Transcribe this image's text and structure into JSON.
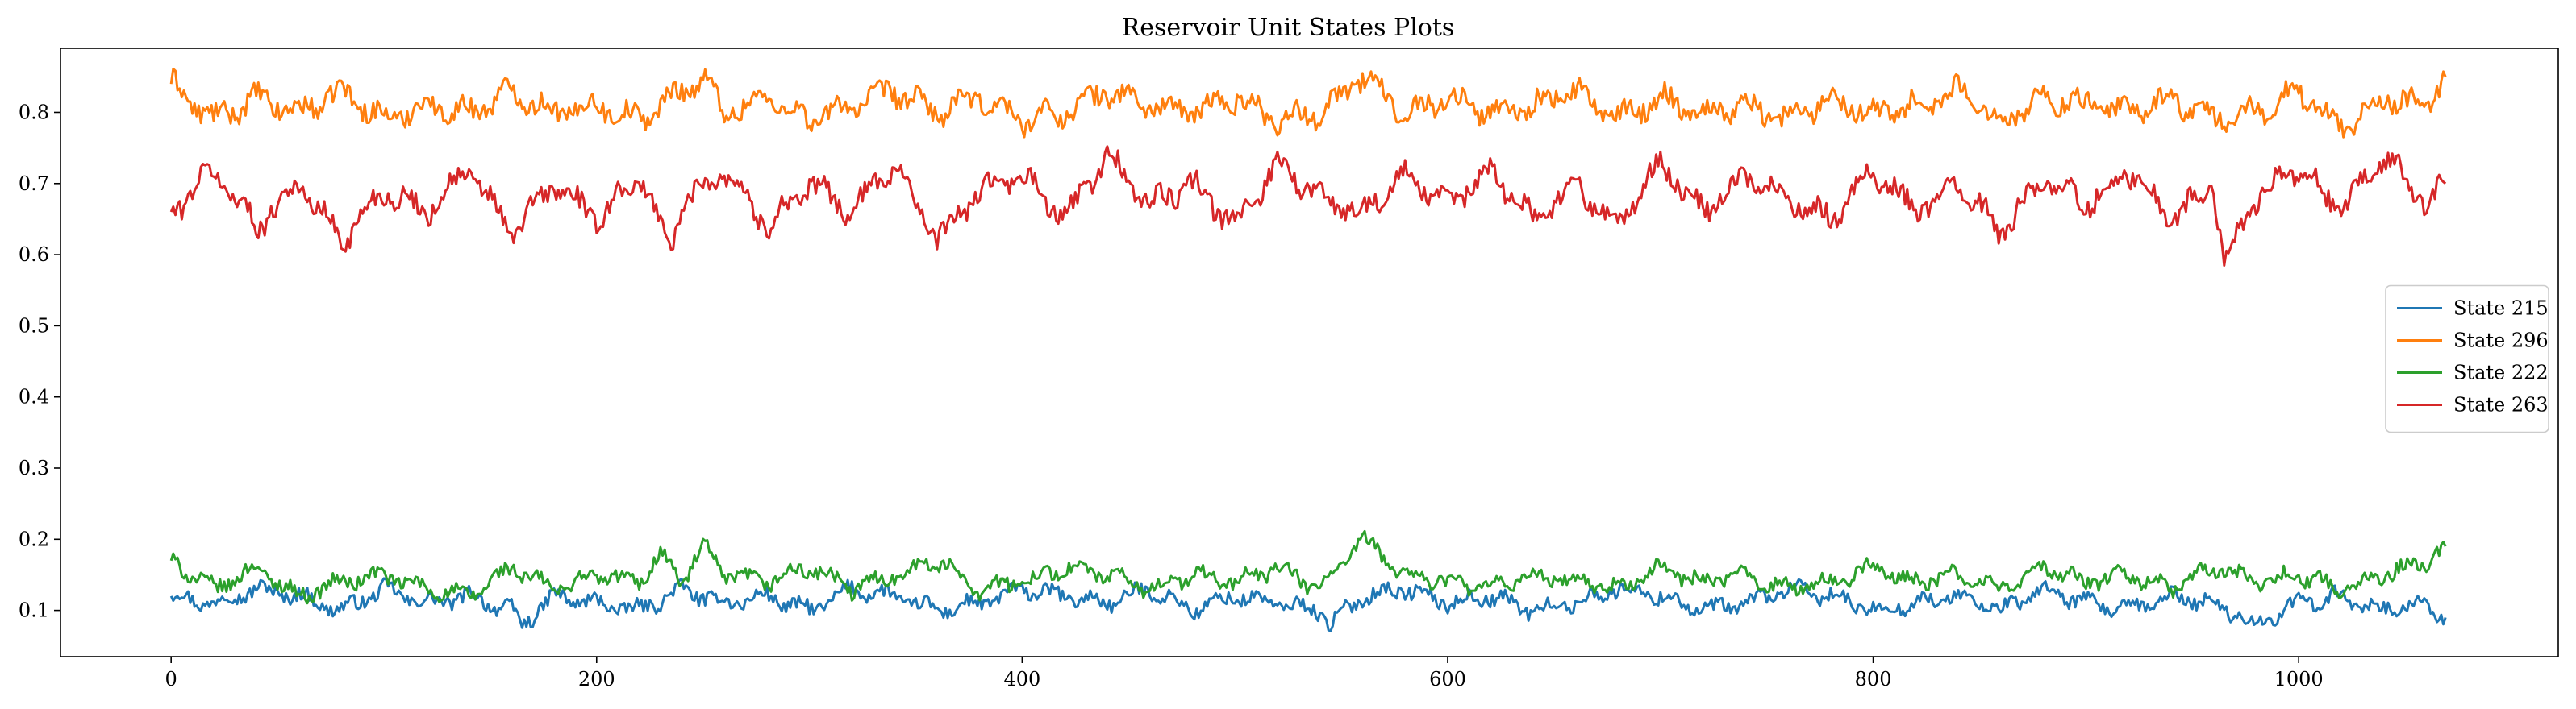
{
  "chart_data": {
    "type": "line",
    "title": "Reservoir Unit States Plots",
    "xlabel": "",
    "ylabel": "",
    "xlim": [
      -52,
      1122
    ],
    "ylim": [
      0.035,
      0.89
    ],
    "x_ticks": [
      0,
      200,
      400,
      600,
      800,
      1000
    ],
    "x_tick_labels": [
      "0",
      "200",
      "400",
      "600",
      "800",
      "1000"
    ],
    "y_ticks": [
      0.1,
      0.2,
      0.3,
      0.4,
      0.5,
      0.6,
      0.7,
      0.8
    ],
    "y_tick_labels": [
      "0.1",
      "0.2",
      "0.3",
      "0.4",
      "0.5",
      "0.6",
      "0.7",
      "0.8"
    ],
    "grid": false,
    "legend_position": "center-right",
    "n_points": 1070,
    "series": [
      {
        "name": "State 215",
        "color": "#1f77b4",
        "x": [
          0,
          20,
          40,
          60,
          80,
          100,
          120,
          140,
          160,
          165,
          180,
          200,
          220,
          240,
          260,
          280,
          300,
          320,
          340,
          360,
          380,
          400,
          420,
          440,
          460,
          480,
          500,
          520,
          540,
          545,
          560,
          580,
          600,
          620,
          640,
          660,
          680,
          700,
          720,
          740,
          760,
          780,
          800,
          820,
          840,
          860,
          880,
          900,
          920,
          940,
          960,
          980,
          1000,
          1020,
          1040,
          1060,
          1069
        ],
        "values": [
          0.12,
          0.11,
          0.13,
          0.12,
          0.1,
          0.13,
          0.11,
          0.12,
          0.1,
          0.08,
          0.12,
          0.11,
          0.1,
          0.13,
          0.11,
          0.12,
          0.1,
          0.13,
          0.12,
          0.1,
          0.11,
          0.13,
          0.12,
          0.11,
          0.13,
          0.1,
          0.12,
          0.11,
          0.1,
          0.08,
          0.12,
          0.13,
          0.11,
          0.12,
          0.1,
          0.11,
          0.13,
          0.12,
          0.1,
          0.11,
          0.13,
          0.12,
          0.1,
          0.11,
          0.12,
          0.1,
          0.13,
          0.11,
          0.1,
          0.12,
          0.11,
          0.08,
          0.11,
          0.12,
          0.1,
          0.11,
          0.09
        ]
      },
      {
        "name": "State 296",
        "color": "#ff7f0e",
        "x": [
          0,
          20,
          40,
          60,
          80,
          100,
          120,
          140,
          160,
          180,
          200,
          220,
          240,
          250,
          260,
          280,
          300,
          320,
          340,
          360,
          380,
          400,
          420,
          440,
          460,
          480,
          500,
          520,
          540,
          560,
          580,
          600,
          620,
          640,
          660,
          680,
          700,
          720,
          740,
          760,
          780,
          800,
          820,
          840,
          860,
          880,
          900,
          920,
          940,
          960,
          980,
          1000,
          1020,
          1040,
          1060,
          1069
        ],
        "values": [
          0.84,
          0.79,
          0.82,
          0.8,
          0.83,
          0.79,
          0.81,
          0.8,
          0.83,
          0.8,
          0.81,
          0.79,
          0.83,
          0.85,
          0.8,
          0.82,
          0.79,
          0.81,
          0.83,
          0.8,
          0.82,
          0.79,
          0.8,
          0.83,
          0.81,
          0.8,
          0.82,
          0.79,
          0.8,
          0.85,
          0.8,
          0.82,
          0.8,
          0.81,
          0.83,
          0.79,
          0.82,
          0.8,
          0.81,
          0.79,
          0.82,
          0.8,
          0.81,
          0.83,
          0.79,
          0.82,
          0.81,
          0.8,
          0.82,
          0.79,
          0.8,
          0.83,
          0.78,
          0.82,
          0.81,
          0.85
        ]
      },
      {
        "name": "State 222",
        "color": "#2ca02c",
        "x": [
          0,
          20,
          40,
          60,
          80,
          100,
          120,
          140,
          160,
          180,
          200,
          220,
          230,
          240,
          250,
          260,
          280,
          300,
          320,
          340,
          360,
          380,
          400,
          420,
          440,
          460,
          480,
          500,
          520,
          540,
          560,
          580,
          600,
          620,
          640,
          660,
          680,
          700,
          720,
          740,
          760,
          780,
          800,
          820,
          840,
          860,
          880,
          900,
          920,
          940,
          960,
          980,
          1000,
          1020,
          1040,
          1060,
          1069
        ],
        "values": [
          0.17,
          0.13,
          0.16,
          0.12,
          0.14,
          0.15,
          0.13,
          0.12,
          0.16,
          0.13,
          0.15,
          0.14,
          0.18,
          0.14,
          0.19,
          0.15,
          0.14,
          0.16,
          0.13,
          0.15,
          0.17,
          0.13,
          0.14,
          0.16,
          0.15,
          0.13,
          0.15,
          0.14,
          0.16,
          0.13,
          0.2,
          0.15,
          0.14,
          0.13,
          0.15,
          0.14,
          0.13,
          0.16,
          0.14,
          0.15,
          0.13,
          0.14,
          0.16,
          0.14,
          0.15,
          0.13,
          0.16,
          0.14,
          0.15,
          0.13,
          0.16,
          0.14,
          0.15,
          0.13,
          0.15,
          0.17,
          0.19
        ]
      },
      {
        "name": "State 263",
        "color": "#d62728",
        "x": [
          0,
          20,
          40,
          60,
          80,
          100,
          120,
          140,
          160,
          180,
          200,
          220,
          235,
          240,
          260,
          280,
          300,
          320,
          340,
          360,
          380,
          400,
          420,
          440,
          460,
          480,
          500,
          520,
          540,
          560,
          580,
          600,
          620,
          640,
          660,
          680,
          700,
          720,
          740,
          760,
          780,
          800,
          820,
          840,
          860,
          880,
          900,
          920,
          940,
          960,
          965,
          980,
          1000,
          1020,
          1040,
          1060,
          1069
        ],
        "values": [
          0.66,
          0.72,
          0.64,
          0.7,
          0.62,
          0.69,
          0.66,
          0.72,
          0.63,
          0.7,
          0.65,
          0.71,
          0.61,
          0.67,
          0.72,
          0.64,
          0.7,
          0.66,
          0.73,
          0.62,
          0.69,
          0.71,
          0.65,
          0.74,
          0.67,
          0.7,
          0.64,
          0.73,
          0.68,
          0.66,
          0.71,
          0.67,
          0.72,
          0.65,
          0.7,
          0.64,
          0.73,
          0.66,
          0.71,
          0.68,
          0.65,
          0.72,
          0.66,
          0.7,
          0.63,
          0.71,
          0.67,
          0.72,
          0.65,
          0.7,
          0.59,
          0.68,
          0.72,
          0.66,
          0.74,
          0.67,
          0.7
        ]
      }
    ]
  }
}
